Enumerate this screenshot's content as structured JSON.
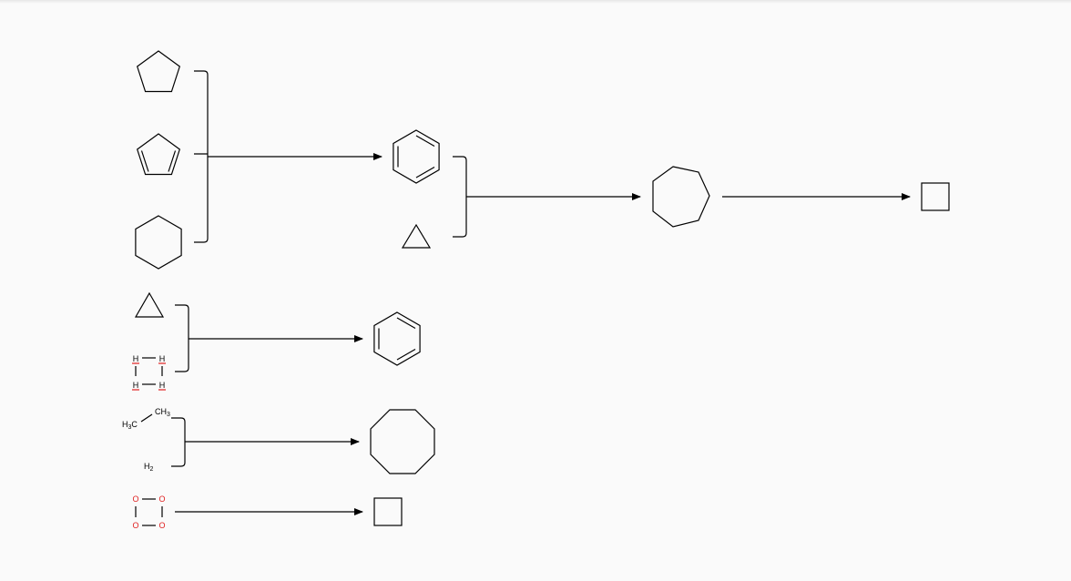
{
  "colors": {
    "background": "#fafafa",
    "stroke": "#000000",
    "oxygen": "#e02020",
    "hydrogen_mark": "#e02020"
  },
  "reactions": [
    {
      "id": "r1",
      "reactants": [
        "cyclopentane",
        "cyclopentadiene",
        "cyclohexane"
      ],
      "product": "benzene"
    },
    {
      "id": "r2",
      "reactants": [
        "benzene",
        "cyclopropane"
      ],
      "product": "cycloheptane"
    },
    {
      "id": "r3",
      "reactants": [
        "cycloheptane"
      ],
      "product": "cyclobutane"
    },
    {
      "id": "r4",
      "reactants": [
        "cyclopropane",
        "H4 square"
      ],
      "product": "benzene"
    },
    {
      "id": "r5",
      "reactants": [
        "ethane",
        "hydrogen"
      ],
      "product": "cyclooctane"
    },
    {
      "id": "r6",
      "reactants": [
        "O4 square"
      ],
      "product": "cyclobutane"
    }
  ],
  "labels": {
    "h": "H",
    "o": "O",
    "h3c_main": "H",
    "h3c_sub": "3",
    "h3c_tail": "C",
    "ch3_main": "CH",
    "ch3_sub": "3",
    "h2_main": "H",
    "h2_sub": "2"
  }
}
